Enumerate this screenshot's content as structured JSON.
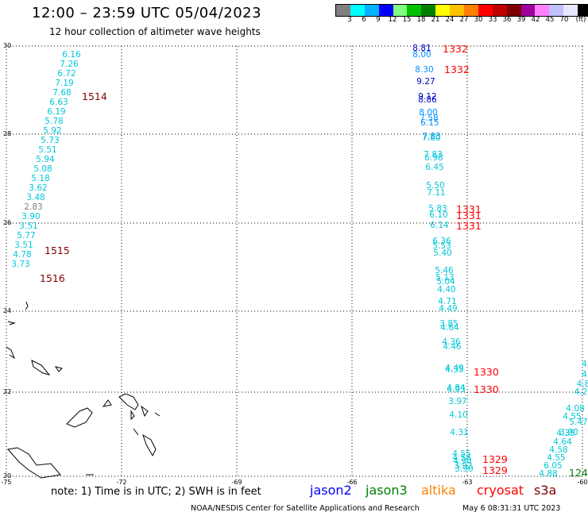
{
  "header": {
    "title": "12:00 – 23:59 UTC 05/04/2023",
    "subtitle": "12 hour collection of altimeter wave heights"
  },
  "legend": {
    "colors": [
      "#808080",
      "#00ffff",
      "#00b2ff",
      "#0000ff",
      "#80ff80",
      "#00c000",
      "#008000",
      "#ffff00",
      "#ffc000",
      "#ff8000",
      "#ff0000",
      "#c00000",
      "#800000",
      "#a000a0",
      "#ff80ff",
      "#c0c0ff",
      "#e8e8ff",
      "#000000"
    ],
    "labels": [
      "3",
      "6",
      "9",
      "12",
      "15",
      "18",
      "21",
      "24",
      "27",
      "30",
      "33",
      "36",
      "39",
      "42",
      "45",
      "70",
      "(ft)"
    ]
  },
  "axes": {
    "y_labels": [
      "30",
      "28",
      "26",
      "24",
      "22",
      "20"
    ],
    "x_labels": [
      "-75",
      "-72",
      "-69",
      "-66",
      "-63",
      "-60"
    ]
  },
  "track_ids": [
    {
      "text": "1514",
      "color": "#800000"
    },
    {
      "text": "1515",
      "color": "#800000"
    },
    {
      "text": "1516",
      "color": "#800000"
    },
    {
      "text": "1332",
      "color": "#ff0000"
    },
    {
      "text": "1332",
      "color": "#ff0000"
    },
    {
      "text": "1331",
      "color": "#ff0000"
    },
    {
      "text": "1331",
      "color": "#ff0000"
    },
    {
      "text": "1331",
      "color": "#ff0000"
    },
    {
      "text": "1330",
      "color": "#ff0000"
    },
    {
      "text": "1330",
      "color": "#ff0000"
    },
    {
      "text": "1329",
      "color": "#ff0000"
    },
    {
      "text": "1329",
      "color": "#ff0000"
    },
    {
      "text": "124",
      "color": "#008000"
    }
  ],
  "wave_heights": {
    "left_track": [
      "6.16",
      "7.26",
      "6.72",
      "7.19",
      "7.68",
      "6.63",
      "6.19",
      "5.78",
      "5.92",
      "5.73",
      "5.51",
      "5.94",
      "5.08",
      "5.18",
      "3.62",
      "3.48",
      "2.83",
      "3.90",
      "3.51",
      "5.77",
      "3.51",
      "4.78",
      "3.73"
    ],
    "middle_track": [
      "8.81",
      "8.00",
      "8.30",
      "9.27",
      "9.12",
      "8.86",
      "8.00",
      "7.58",
      "6.15",
      "7.83",
      "7.80",
      "7.83",
      "6.98",
      "6.45",
      "5.50",
      "7.11",
      "5.83",
      "6.10",
      "6.14",
      "6.36",
      "5.53",
      "5.40",
      "5.46",
      "5.13",
      "5.04",
      "4.40",
      "4.71",
      "4.49",
      "3.85",
      "4.64",
      "4.36",
      "4.46",
      "4.49",
      "4.35",
      "4.84",
      "4.93",
      "3.97",
      "4.10",
      "4.31",
      "4.55",
      "4.58",
      "4.90",
      "3.92",
      "3.90"
    ],
    "right_track": [
      "4.",
      "4.",
      "4.8",
      "4.2",
      "5.47",
      "4.08",
      "4.55",
      "3.90",
      "4.35",
      "4.64",
      "4.58",
      "4.55",
      "6.05",
      "4.88"
    ]
  },
  "note": "note:  1) Time is in UTC;  2) SWH is in feet",
  "satellites": [
    {
      "name": "jason2",
      "color": "#0000ff"
    },
    {
      "name": "jason3",
      "color": "#008000"
    },
    {
      "name": "altika",
      "color": "#ff8000"
    },
    {
      "name": "cryosat",
      "color": "#ff0000"
    },
    {
      "name": "s3a",
      "color": "#800000"
    }
  ],
  "credit_left": "NOAA/NESDIS Center for Satellite Applications and Research",
  "credit_right": "May  6 08:31:31 UTC 2023"
}
